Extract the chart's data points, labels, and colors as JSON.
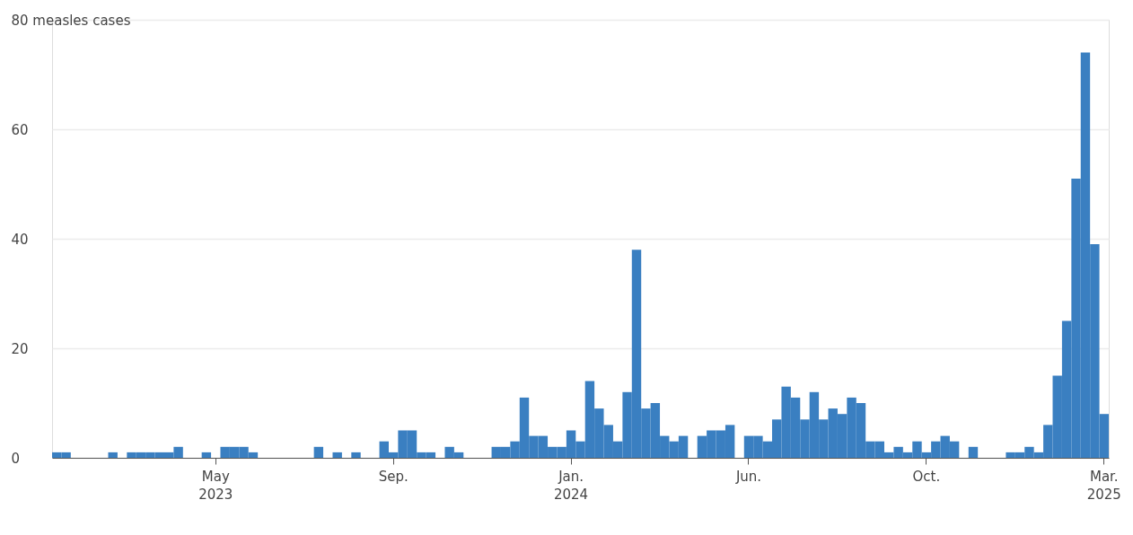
{
  "chart_data": {
    "type": "bar",
    "categories": [
      null,
      null,
      null,
      null,
      null,
      null,
      null,
      null,
      null,
      null,
      null,
      null,
      null,
      null,
      null,
      null,
      null,
      "May\n2023",
      null,
      null,
      null,
      null,
      null,
      null,
      null,
      null,
      null,
      null,
      null,
      null,
      null,
      null,
      null,
      null,
      null,
      null,
      "Sep.",
      null,
      null,
      null,
      null,
      null,
      null,
      null,
      null,
      null,
      null,
      null,
      null,
      null,
      null,
      null,
      null,
      null,
      null,
      "Jan.\n2024",
      null,
      null,
      null,
      null,
      null,
      null,
      null,
      null,
      null,
      null,
      null,
      null,
      null,
      null,
      null,
      null,
      null,
      null,
      "Jun.",
      null,
      null,
      null,
      null,
      null,
      null,
      null,
      null,
      null,
      null,
      null,
      null,
      null,
      null,
      null,
      null,
      null,
      null,
      "Oct.",
      null,
      null,
      null,
      null,
      null,
      null,
      null,
      null,
      null,
      null,
      null,
      null,
      null,
      null,
      null,
      null,
      null,
      null,
      "Mar.\n2025"
    ],
    "values": [
      1,
      1,
      0,
      0,
      0,
      0,
      1,
      0,
      1,
      1,
      1,
      1,
      1,
      2,
      0,
      0,
      1,
      0,
      2,
      2,
      2,
      1,
      0,
      0,
      0,
      0,
      0,
      0,
      2,
      0,
      1,
      0,
      1,
      0,
      0,
      3,
      1,
      5,
      5,
      1,
      1,
      0,
      2,
      1,
      0,
      0,
      0,
      2,
      2,
      3,
      11,
      4,
      4,
      2,
      2,
      5,
      3,
      14,
      9,
      6,
      3,
      12,
      38,
      9,
      10,
      4,
      3,
      4,
      0,
      4,
      5,
      5,
      6,
      0,
      4,
      4,
      3,
      7,
      13,
      11,
      7,
      12,
      7,
      9,
      8,
      11,
      10,
      3,
      3,
      1,
      2,
      1,
      3,
      1,
      3,
      4,
      3,
      0,
      2,
      0,
      0,
      0,
      1,
      1,
      2,
      1,
      6,
      15,
      25,
      51,
      74,
      39,
      8
    ],
    "color": "#3a7fc1",
    "ylim": [
      0,
      80
    ],
    "yticks": [
      0,
      20,
      40,
      60,
      {
        "value": 80,
        "label": "80 measles cases"
      }
    ],
    "grid": "y"
  }
}
